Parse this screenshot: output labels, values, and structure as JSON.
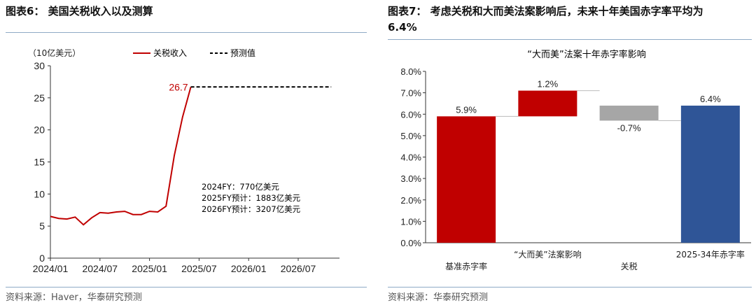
{
  "left": {
    "title": "图表6：  美国关税收入以及测算",
    "source": "资料来源：Haver，华泰研究预测",
    "chart_data": {
      "type": "line",
      "unit_label": "（10亿美元）",
      "ylim": [
        0,
        30
      ],
      "yticks": [
        0,
        5,
        10,
        15,
        20,
        25,
        30
      ],
      "xlabels": [
        "2024/01",
        "2024/07",
        "2025/01",
        "2025/07",
        "2026/01",
        "2026/07"
      ],
      "series": [
        {
          "name": "关税收入",
          "color": "#c00000",
          "x": [
            "2024-01",
            "2024-02",
            "2024-03",
            "2024-04",
            "2024-05",
            "2024-06",
            "2024-07",
            "2024-08",
            "2024-09",
            "2024-10",
            "2024-11",
            "2024-12",
            "2025-01",
            "2025-02",
            "2025-03",
            "2025-04",
            "2025-05",
            "2025-06"
          ],
          "values": [
            6.5,
            6.2,
            6.1,
            6.4,
            5.2,
            6.3,
            7.1,
            7.0,
            7.2,
            7.3,
            6.8,
            6.8,
            7.3,
            7.2,
            8.1,
            16.0,
            22.0,
            26.7
          ]
        },
        {
          "name": "预测值",
          "color": "#000000",
          "x": [
            "2025-06",
            "2026-11"
          ],
          "values": [
            26.7,
            26.7
          ]
        }
      ],
      "peak_label": "26.7",
      "annotations": [
        "2024FY：770亿美元",
        "2025FY预计：1883亿美元",
        "2026FY预计：3207亿美元"
      ]
    }
  },
  "right": {
    "title_line1": "图表7：  考虑关税和大而美法案影响后，未来十年美国赤字率平均为",
    "title_line2": "6.4%",
    "source": "资料来源：华泰研究预测",
    "chart_data": {
      "type": "bar",
      "subtype": "waterfall",
      "title": "“大而美”法案十年赤字率影响",
      "ylim": [
        0,
        8
      ],
      "yticks": [
        "0.0%",
        "1.0%",
        "2.0%",
        "3.0%",
        "4.0%",
        "5.0%",
        "6.0%",
        "7.0%",
        "8.0%"
      ],
      "categories": [
        "基准赤字率",
        "“大而美”法案影响",
        "关税",
        "2025-34年赤字率"
      ],
      "values": [
        5.9,
        1.2,
        -0.7,
        6.4
      ],
      "bases": [
        0,
        5.9,
        6.4,
        0
      ],
      "labels": [
        "5.9%",
        "1.2%",
        "-0.7%",
        "6.4%"
      ],
      "colors": [
        "#c00000",
        "#c00000",
        "#a6a6a6",
        "#2f5597"
      ]
    }
  }
}
